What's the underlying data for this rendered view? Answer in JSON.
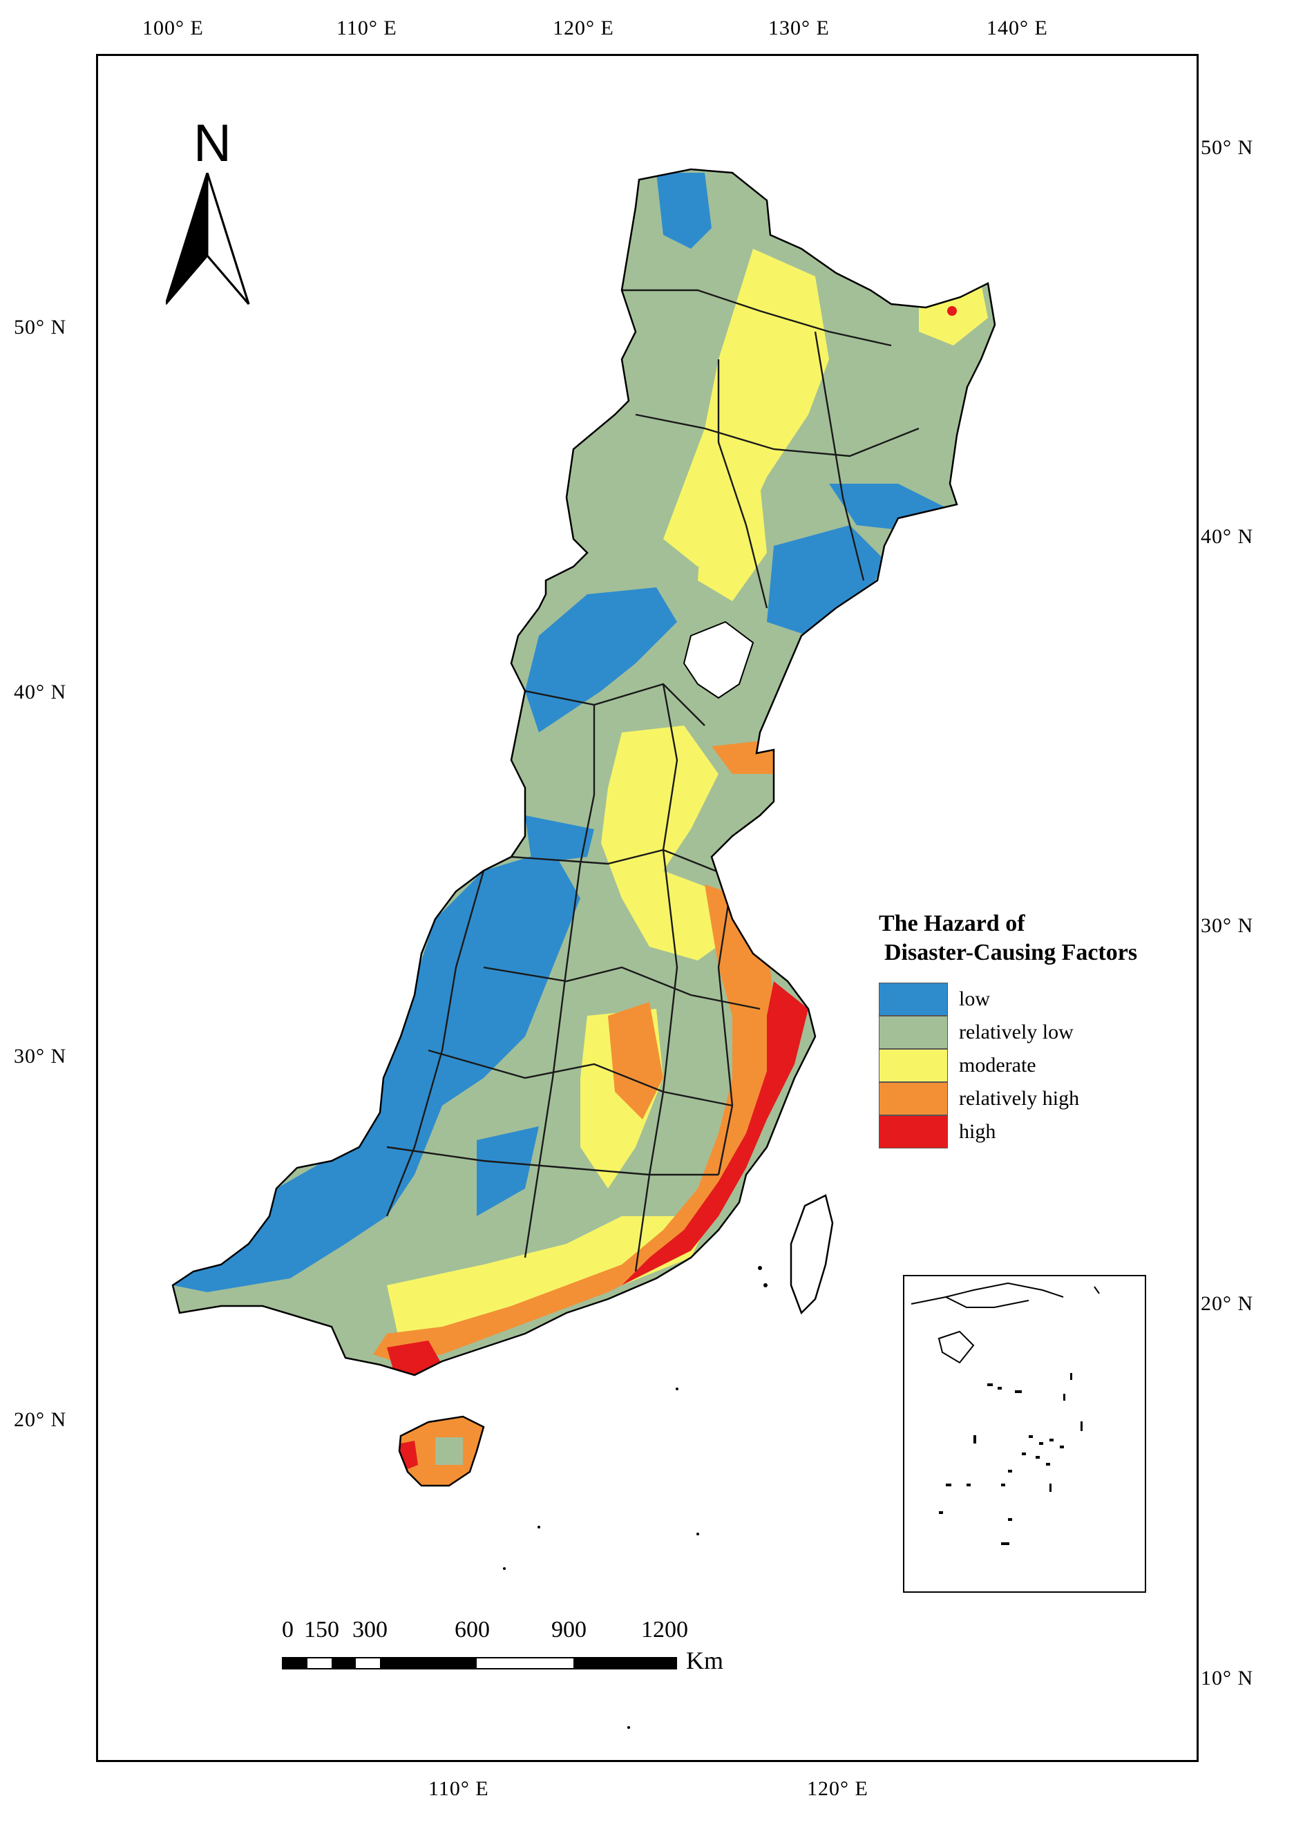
{
  "axes": {
    "top_lon": [
      "100° E",
      "110° E",
      "120° E",
      "130° E",
      "140° E"
    ],
    "bottom_lon": [
      "110° E",
      "120° E"
    ],
    "left_lat": [
      "50° N",
      "40° N",
      "30° N",
      "20° N"
    ],
    "right_lat": [
      "50° N",
      "40° N",
      "30° N",
      "20° N",
      "10° N"
    ]
  },
  "north_arrow": {
    "label": "N"
  },
  "legend": {
    "title_line1": "The Hazard of",
    "title_line2": "Disaster-Causing Factors",
    "items": [
      {
        "label": "low",
        "color": "#2e8ccd"
      },
      {
        "label": "relatively low",
        "color": "#a3bf98"
      },
      {
        "label": "moderate",
        "color": "#f7f566"
      },
      {
        "label": "relatively high",
        "color": "#f39035"
      },
      {
        "label": "high",
        "color": "#e41a1c"
      }
    ]
  },
  "scale_bar": {
    "ticks": [
      "0",
      "150",
      "300",
      "600",
      "900",
      "1200"
    ],
    "unit": "Km"
  },
  "colors": {
    "frame": "#000000",
    "boundary": "#1a1a1a"
  }
}
